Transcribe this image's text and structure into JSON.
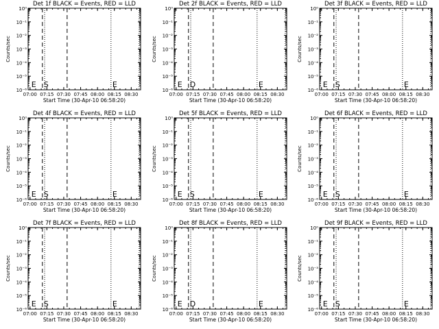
{
  "chart_data": [
    {
      "type": "line",
      "title": "Det 1f BLACK = Events, RED = LLD",
      "xlabel": "Start Time (30-Apr-10 06:58:20)",
      "ylabel": "Counts/sec",
      "x_ticks": [
        "07:00",
        "07:15",
        "07:30",
        "07:45",
        "08:00",
        "08:15",
        "08:30"
      ],
      "y_ticks": [
        "10⁰",
        "10⁻¹",
        "10⁻²",
        "10⁻³",
        "10⁻⁴",
        "10⁻⁵",
        "10⁻⁶"
      ],
      "xlim": [
        "06:58:20",
        "08:38:20"
      ],
      "ylim": [
        1e-06,
        1
      ],
      "log_y": true,
      "dashed_lines": [
        "07:11",
        "07:33"
      ],
      "dotted_lines": [
        "07:13",
        "08:12",
        "08:37"
      ],
      "markers": [
        {
          "label": "E",
          "x": "07:00"
        },
        {
          "label": "S",
          "x": "07:11"
        },
        {
          "label": "E",
          "x": "08:12"
        }
      ]
    },
    {
      "type": "line",
      "title": "Det 2f BLACK = Events, RED = LLD",
      "xlabel": "Start Time (30-Apr-10 06:58:20)",
      "ylabel": "Counts/sec",
      "x_ticks": [
        "07:00",
        "07:15",
        "07:30",
        "07:45",
        "08:00",
        "08:15",
        "08:30"
      ],
      "y_ticks": [
        "10⁰",
        "10⁻¹",
        "10⁻²",
        "10⁻³",
        "10⁻⁴",
        "10⁻⁵",
        "10⁻⁶"
      ],
      "xlim": [
        "06:58:20",
        "08:38:20"
      ],
      "ylim": [
        1e-06,
        1
      ],
      "log_y": true,
      "dashed_lines": [
        "07:11",
        "07:33"
      ],
      "dotted_lines": [
        "07:13",
        "08:12",
        "08:37"
      ],
      "markers": [
        {
          "label": "E",
          "x": "07:00"
        },
        {
          "label": "D",
          "x": "07:11"
        },
        {
          "label": "E",
          "x": "08:12"
        }
      ]
    },
    {
      "type": "line",
      "title": "Det 3f BLACK = Events, RED = LLD",
      "xlabel": "Start Time (30-Apr-10 06:58:20)",
      "ylabel": "Counts/sec",
      "x_ticks": [
        "07:00",
        "07:15",
        "07:30",
        "07:45",
        "08:00",
        "08:15",
        "08:30"
      ],
      "y_ticks": [
        "10⁰",
        "10⁻¹",
        "10⁻²",
        "10⁻³",
        "10⁻⁴",
        "10⁻⁵",
        "10⁻⁶"
      ],
      "xlim": [
        "06:58:20",
        "08:38:20"
      ],
      "ylim": [
        1e-06,
        1
      ],
      "log_y": true,
      "dashed_lines": [
        "07:11",
        "07:33"
      ],
      "dotted_lines": [
        "07:13",
        "08:12",
        "08:37"
      ],
      "markers": [
        {
          "label": "E",
          "x": "07:00"
        },
        {
          "label": "S",
          "x": "07:11"
        },
        {
          "label": "E",
          "x": "08:12"
        }
      ]
    },
    {
      "type": "line",
      "title": "Det 4f BLACK = Events, RED = LLD",
      "xlabel": "Start Time (30-Apr-10 06:58:20)",
      "ylabel": "Counts/sec",
      "x_ticks": [
        "07:00",
        "07:15",
        "07:30",
        "07:45",
        "08:00",
        "08:15",
        "08:30"
      ],
      "y_ticks": [
        "10⁰",
        "10⁻¹",
        "10⁻²",
        "10⁻³",
        "10⁻⁴",
        "10⁻⁵",
        "10⁻⁶"
      ],
      "xlim": [
        "06:58:20",
        "08:38:20"
      ],
      "ylim": [
        1e-06,
        1
      ],
      "log_y": true,
      "dashed_lines": [
        "07:11",
        "07:33"
      ],
      "dotted_lines": [
        "07:13",
        "08:12",
        "08:37"
      ],
      "markers": [
        {
          "label": "E",
          "x": "07:00"
        },
        {
          "label": "S",
          "x": "07:11"
        },
        {
          "label": "E",
          "x": "08:12"
        }
      ]
    },
    {
      "type": "line",
      "title": "Det 5f BLACK = Events, RED = LLD",
      "xlabel": "Start Time (30-Apr-10 06:58:20)",
      "ylabel": "Counts/sec",
      "x_ticks": [
        "07:00",
        "07:15",
        "07:30",
        "07:45",
        "08:00",
        "08:15",
        "08:30"
      ],
      "y_ticks": [
        "10⁰",
        "10⁻¹",
        "10⁻²",
        "10⁻³",
        "10⁻⁴",
        "10⁻⁵",
        "10⁻⁶"
      ],
      "xlim": [
        "06:58:20",
        "08:38:20"
      ],
      "ylim": [
        1e-06,
        1
      ],
      "log_y": true,
      "dashed_lines": [
        "07:11",
        "07:33"
      ],
      "dotted_lines": [
        "07:13",
        "08:12",
        "08:37"
      ],
      "markers": [
        {
          "label": "E",
          "x": "07:00"
        },
        {
          "label": "S",
          "x": "07:11"
        },
        {
          "label": "E",
          "x": "08:12"
        }
      ]
    },
    {
      "type": "line",
      "title": "Det 6f BLACK = Events, RED = LLD",
      "xlabel": "Start Time (30-Apr-10 06:58:20)",
      "ylabel": "Counts/sec",
      "x_ticks": [
        "07:00",
        "07:15",
        "07:30",
        "07:45",
        "08:00",
        "08:15",
        "08:30"
      ],
      "y_ticks": [
        "10⁰",
        "10⁻¹",
        "10⁻²",
        "10⁻³",
        "10⁻⁴",
        "10⁻⁵",
        "10⁻⁶"
      ],
      "xlim": [
        "06:58:20",
        "08:38:20"
      ],
      "ylim": [
        1e-06,
        1
      ],
      "log_y": true,
      "dashed_lines": [
        "07:11",
        "07:33"
      ],
      "dotted_lines": [
        "07:13",
        "08:12",
        "08:37"
      ],
      "markers": [
        {
          "label": "E",
          "x": "07:00"
        },
        {
          "label": "S",
          "x": "07:11"
        },
        {
          "label": "E",
          "x": "08:12"
        }
      ]
    },
    {
      "type": "line",
      "title": "Det 7f BLACK = Events, RED = LLD",
      "xlabel": "Start Time (30-Apr-10 06:58:20)",
      "ylabel": "Counts/sec",
      "x_ticks": [
        "07:00",
        "07:15",
        "07:30",
        "07:45",
        "08:00",
        "08:15",
        "08:30"
      ],
      "y_ticks": [
        "10⁰",
        "10⁻¹",
        "10⁻²",
        "10⁻³",
        "10⁻⁴",
        "10⁻⁵",
        "10⁻⁶"
      ],
      "xlim": [
        "06:58:20",
        "08:38:20"
      ],
      "ylim": [
        1e-06,
        1
      ],
      "log_y": true,
      "dashed_lines": [
        "07:11",
        "07:33"
      ],
      "dotted_lines": [
        "07:13",
        "08:12",
        "08:37"
      ],
      "markers": [
        {
          "label": "E",
          "x": "07:00"
        },
        {
          "label": "S",
          "x": "07:11"
        },
        {
          "label": "E",
          "x": "08:12"
        }
      ]
    },
    {
      "type": "line",
      "title": "Det 8f BLACK = Events, RED = LLD",
      "xlabel": "Start Time (30-Apr-10 06:58:20)",
      "ylabel": "Counts/sec",
      "x_ticks": [
        "07:00",
        "07:15",
        "07:30",
        "07:45",
        "08:00",
        "08:15",
        "08:30"
      ],
      "y_ticks": [
        "10⁰",
        "10⁻¹",
        "10⁻²",
        "10⁻³",
        "10⁻⁴",
        "10⁻⁵",
        "10⁻⁶"
      ],
      "xlim": [
        "06:58:20",
        "08:38:20"
      ],
      "ylim": [
        1e-06,
        1
      ],
      "log_y": true,
      "dashed_lines": [
        "07:11",
        "07:33"
      ],
      "dotted_lines": [
        "07:13",
        "08:12",
        "08:37"
      ],
      "markers": [
        {
          "label": "E",
          "x": "07:00"
        },
        {
          "label": "D",
          "x": "07:11"
        },
        {
          "label": "E",
          "x": "08:12"
        }
      ]
    },
    {
      "type": "line",
      "title": "Det 9f BLACK = Events, RED = LLD",
      "xlabel": "Start Time (30-Apr-10 06:58:20)",
      "ylabel": "Counts/sec",
      "x_ticks": [
        "07:00",
        "07:15",
        "07:30",
        "07:45",
        "08:00",
        "08:15",
        "08:30"
      ],
      "y_ticks": [
        "10⁰",
        "10⁻¹",
        "10⁻²",
        "10⁻³",
        "10⁻⁴",
        "10⁻⁵",
        "10⁻⁶"
      ],
      "xlim": [
        "06:58:20",
        "08:38:20"
      ],
      "ylim": [
        1e-06,
        1
      ],
      "log_y": true,
      "dashed_lines": [
        "07:11",
        "07:33"
      ],
      "dotted_lines": [
        "07:13",
        "08:12",
        "08:37"
      ],
      "markers": [
        {
          "label": "E",
          "x": "07:00"
        },
        {
          "label": "S",
          "x": "07:11"
        },
        {
          "label": "E",
          "x": "08:12"
        }
      ]
    }
  ]
}
